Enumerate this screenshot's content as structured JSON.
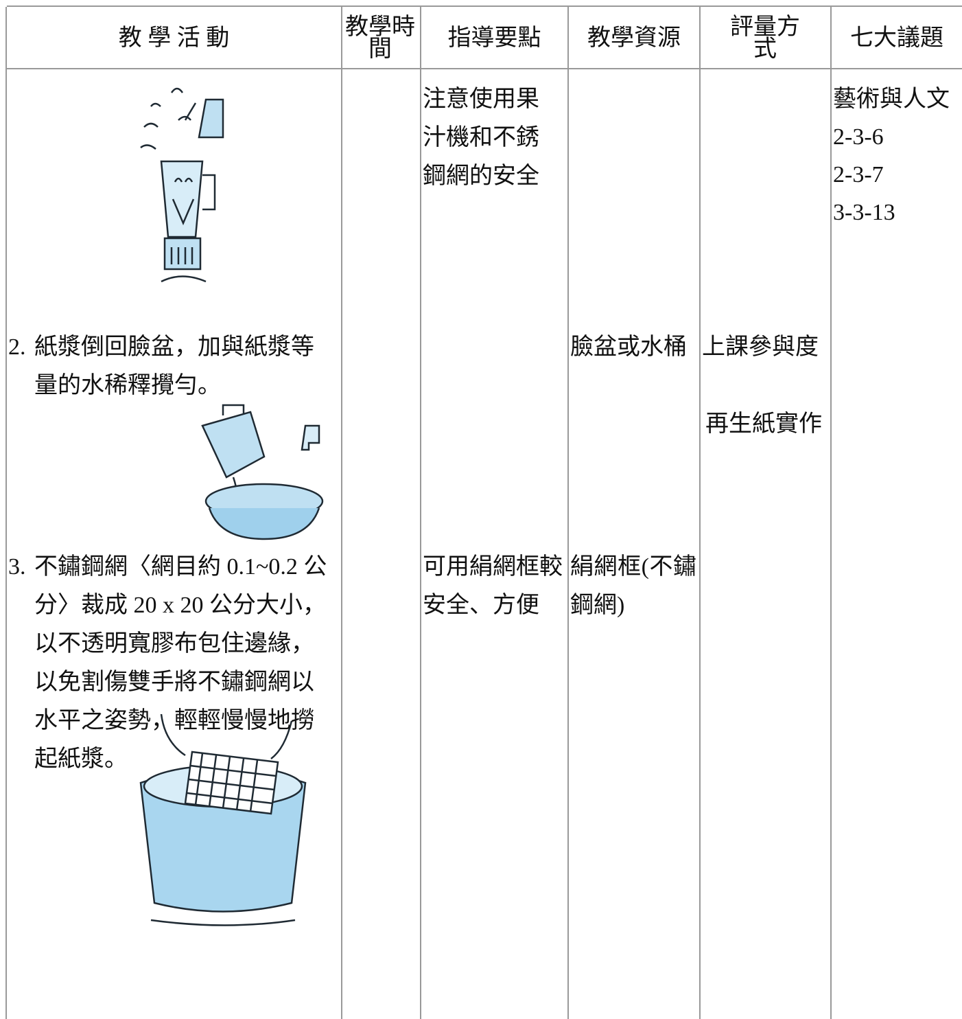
{
  "header": {
    "columns": [
      "教 學 活 動",
      "教學時間",
      "指導要點",
      "教學資源",
      "評量方式",
      "七大議題"
    ]
  },
  "row": {
    "activities": [
      {
        "number": "2.",
        "text": "紙漿倒回臉盆，加與紙漿等量的水稀釋攪勻。"
      },
      {
        "number": "3.",
        "text": "不鏽鋼網〈網目約 0.1~0.2 公分〉裁成 20 x 20 公分大小，以不透明寬膠布包住邊緣，以免割傷雙手將不鏽鋼網以水平之姿勢，輕輕慢慢地撈起紙漿。"
      }
    ],
    "guidance": [
      "注意使用果汁機和不銹鋼網的安全",
      "可用絹網框較安全、方便"
    ],
    "resources": [
      "臉盆或水桶",
      "絹網框(不鏽鋼網)"
    ],
    "assessment": [
      "上課參與度",
      "再生紙實作"
    ],
    "topics": [
      "藝術與人文",
      "2-3-6",
      "2-3-7",
      "3-3-13"
    ]
  }
}
